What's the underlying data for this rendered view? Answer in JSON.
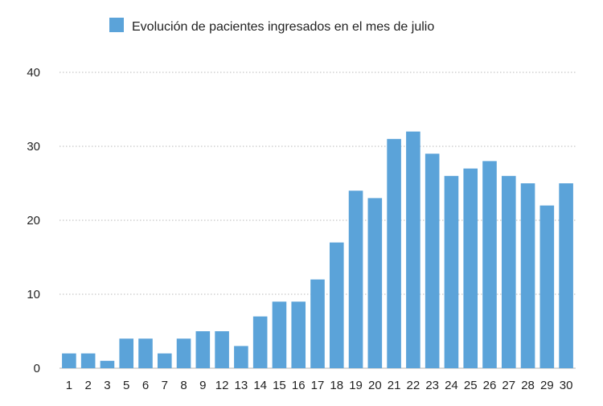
{
  "chart_data": {
    "type": "bar",
    "legend": {
      "label": "Evolución de pacientes ingresados en el mes de julio",
      "position": "top-center"
    },
    "categories": [
      "1",
      "2",
      "3",
      "5",
      "6",
      "7",
      "8",
      "9",
      "12",
      "13",
      "14",
      "15",
      "16",
      "17",
      "18",
      "19",
      "20",
      "21",
      "22",
      "23",
      "24",
      "25",
      "26",
      "27",
      "28",
      "29",
      "30"
    ],
    "series": [
      {
        "name": "Evolución de pacientes ingresados en el mes de julio",
        "values": [
          2,
          2,
          1,
          4,
          4,
          2,
          4,
          5,
          5,
          3,
          7,
          9,
          9,
          12,
          17,
          24,
          23,
          31,
          32,
          29,
          26,
          27,
          28,
          26,
          25,
          22,
          25
        ]
      }
    ],
    "ylim": [
      0,
      40
    ],
    "yticks": [
      0,
      10,
      20,
      30,
      40
    ],
    "grid": true,
    "colors": {
      "bar": "#5ba3d9",
      "grid": "#b9b9b9",
      "text": "#222222"
    }
  }
}
